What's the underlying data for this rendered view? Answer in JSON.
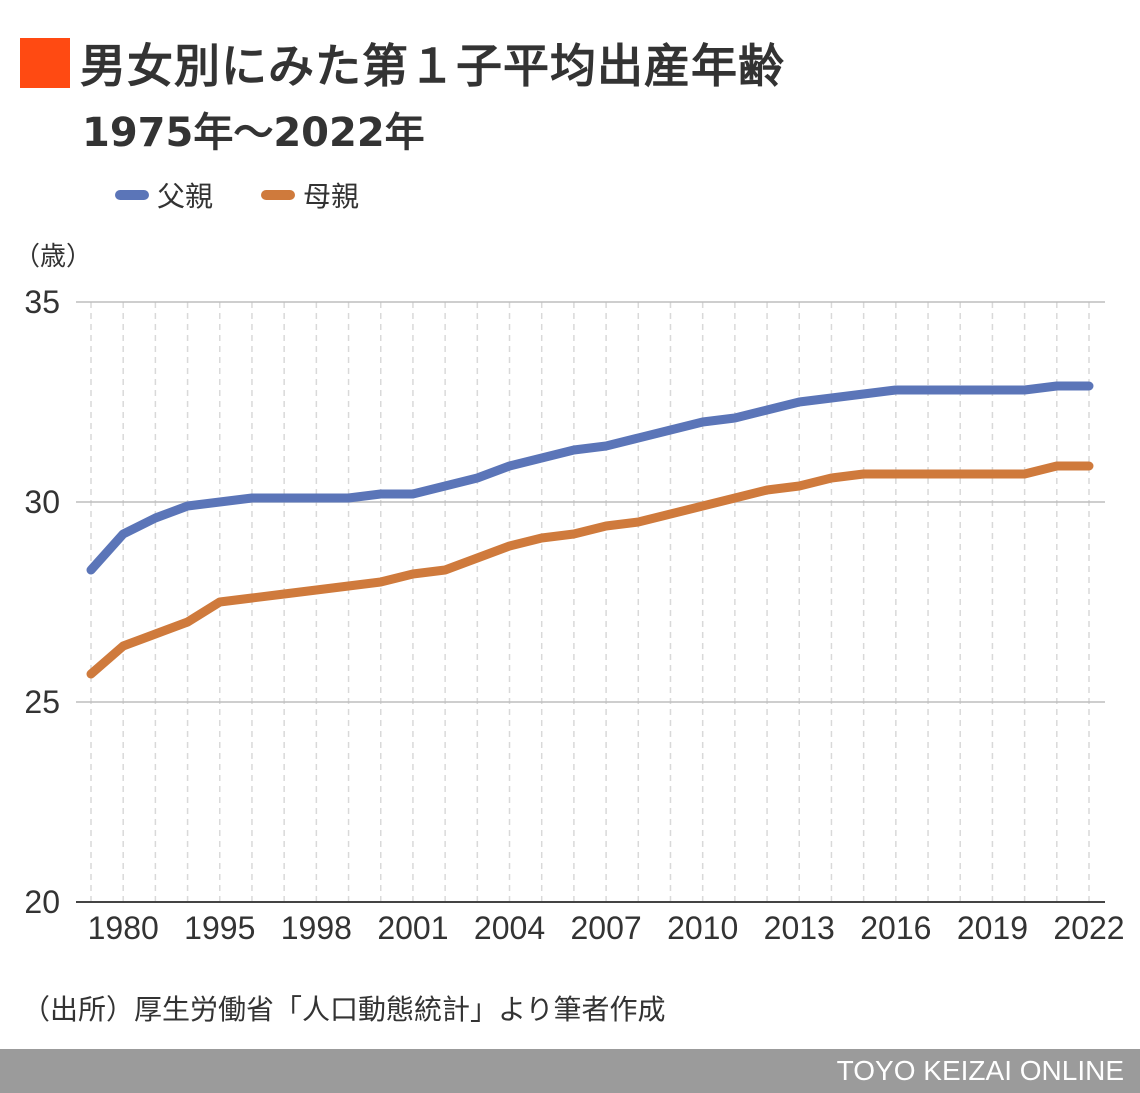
{
  "header": {
    "title": "男女別にみた第１子平均出産年齢",
    "subtitle": "1975年〜2022年"
  },
  "colors": {
    "accent": "#ff4a12",
    "father": "#5b75b8",
    "mother": "#cf7a3c",
    "footer_bg": "#9b9b9b"
  },
  "unit_label": "（歳）",
  "source": "（出所）厚生労働省「人口動態統計」より筆者作成",
  "footer": {
    "brand": "TOYO KEIZAI ONLINE"
  },
  "chart_data": {
    "type": "line",
    "title": "男女別にみた第１子平均出産年齢",
    "subtitle": "1975年〜2022年",
    "ylabel": "（歳）",
    "ylim": [
      20,
      35
    ],
    "yticks": [
      20,
      25,
      30,
      35
    ],
    "grid": true,
    "legend_position": "top-left",
    "x": [
      "1975",
      "1980",
      "1985",
      "1990",
      "1995",
      "1996",
      "1997",
      "1998",
      "1999",
      "2000",
      "2001",
      "2002",
      "2003",
      "2004",
      "2005",
      "2006",
      "2007",
      "2008",
      "2009",
      "2010",
      "2011",
      "2012",
      "2013",
      "2014",
      "2015",
      "2016",
      "2017",
      "2018",
      "2019",
      "2020",
      "2021",
      "2022"
    ],
    "xtick_labels": [
      "1980",
      "1995",
      "1998",
      "2001",
      "2004",
      "2007",
      "2010",
      "2013",
      "2016",
      "2019",
      "2022"
    ],
    "series": [
      {
        "name": "父親",
        "color": "#5b75b8",
        "values": [
          28.3,
          29.2,
          29.6,
          29.9,
          30.0,
          30.1,
          30.1,
          30.1,
          30.1,
          30.2,
          30.2,
          30.4,
          30.6,
          30.9,
          31.1,
          31.3,
          31.4,
          31.6,
          31.8,
          32.0,
          32.1,
          32.3,
          32.5,
          32.6,
          32.7,
          32.8,
          32.8,
          32.8,
          32.8,
          32.8,
          32.9,
          32.9
        ]
      },
      {
        "name": "母親",
        "color": "#cf7a3c",
        "values": [
          25.7,
          26.4,
          26.7,
          27.0,
          27.5,
          27.6,
          27.7,
          27.8,
          27.9,
          28.0,
          28.2,
          28.3,
          28.6,
          28.9,
          29.1,
          29.2,
          29.4,
          29.5,
          29.7,
          29.9,
          30.1,
          30.3,
          30.4,
          30.6,
          30.7,
          30.7,
          30.7,
          30.7,
          30.7,
          30.7,
          30.9,
          30.9
        ]
      }
    ]
  }
}
